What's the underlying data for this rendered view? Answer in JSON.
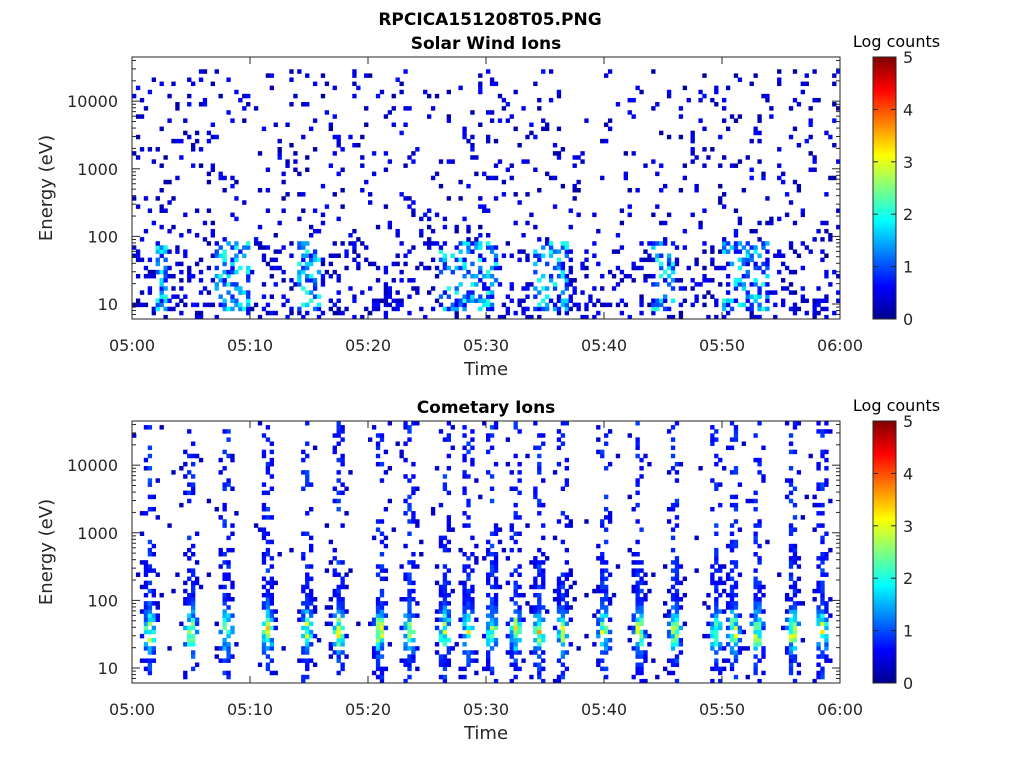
{
  "figure_title": "RPCICA151208T05.PNG",
  "chart_data": [
    {
      "type": "heatmap",
      "title": "Solar Wind Ions",
      "xlabel": "Time",
      "ylabel": "Energy (eV)",
      "x_ticks": [
        "05:00",
        "05:10",
        "05:20",
        "05:30",
        "05:40",
        "05:50",
        "06:00"
      ],
      "x_range_minutes": [
        0,
        60
      ],
      "y_scale": "log",
      "y_ticks": [
        {
          "value": 10,
          "label": "10"
        },
        {
          "value": 100,
          "label": "100"
        },
        {
          "value": 1000,
          "label": "1000"
        },
        {
          "value": 10000,
          "label": "10000"
        }
      ],
      "ylim": [
        6,
        45000
      ],
      "colorbar": {
        "label": "Log counts",
        "range": [
          0,
          5
        ],
        "ticks": [
          "0",
          "1",
          "2",
          "3",
          "4",
          "5"
        ]
      },
      "color_scale": "jet",
      "pattern": "sparse background counts (log ~0-1) across all energies, with brighter clusters (log ~1-2) between 10 and 100 eV near 05:07-05:10, 05:26-05:31, 05:34-05:37, 05:50-05:54",
      "seed": 7
    },
    {
      "type": "heatmap",
      "title": "Cometary Ions",
      "xlabel": "Time",
      "ylabel": "Energy (eV)",
      "x_ticks": [
        "05:00",
        "05:10",
        "05:20",
        "05:30",
        "05:40",
        "05:50",
        "06:00"
      ],
      "x_range_minutes": [
        0,
        60
      ],
      "y_scale": "log",
      "y_ticks": [
        {
          "value": 10,
          "label": "10"
        },
        {
          "value": 100,
          "label": "100"
        },
        {
          "value": 1000,
          "label": "1000"
        },
        {
          "value": 10000,
          "label": "10000"
        }
      ],
      "ylim": [
        6,
        45000
      ],
      "colorbar": {
        "label": "Log counts",
        "range": [
          0,
          5
        ],
        "ticks": [
          "0",
          "1",
          "2",
          "3",
          "4",
          "5"
        ]
      },
      "color_scale": "jet",
      "pattern": "periodic vertical bursts spanning roughly 10-1000 eV with peak intensity (log ~2-3) near 30-40 eV",
      "bursts_minutes": [
        1.5,
        5,
        8,
        11.5,
        14.8,
        17.5,
        21,
        23.5,
        26.5,
        28.5,
        30.5,
        32.5,
        34.5,
        36.5,
        40,
        43,
        46,
        49.5,
        51,
        53,
        56,
        58.5
      ],
      "seed": 11
    }
  ]
}
